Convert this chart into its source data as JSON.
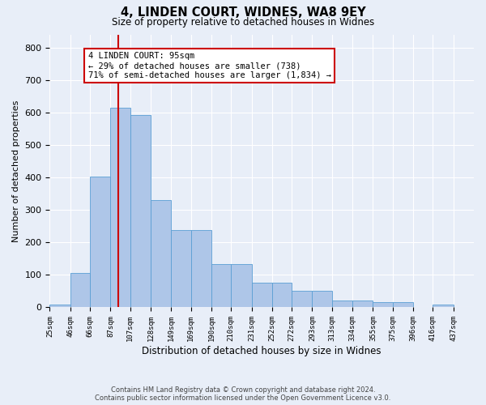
{
  "title1": "4, LINDEN COURT, WIDNES, WA8 9EY",
  "title2": "Size of property relative to detached houses in Widnes",
  "xlabel": "Distribution of detached houses by size in Widnes",
  "ylabel": "Number of detached properties",
  "footer1": "Contains HM Land Registry data © Crown copyright and database right 2024.",
  "footer2": "Contains public sector information licensed under the Open Government Licence v3.0.",
  "annotation_line1": "4 LINDEN COURT: 95sqm",
  "annotation_line2": "← 29% of detached houses are smaller (738)",
  "annotation_line3": "71% of semi-detached houses are larger (1,834) →",
  "bar_left_edges": [
    25,
    46,
    66,
    87,
    107,
    128,
    149,
    169,
    190,
    210,
    231,
    252,
    272,
    293,
    313,
    334,
    355,
    375,
    396,
    416
  ],
  "bar_widths": [
    21,
    20,
    21,
    20,
    21,
    21,
    20,
    21,
    20,
    21,
    21,
    20,
    21,
    20,
    21,
    21,
    20,
    21,
    20,
    21
  ],
  "bar_heights": [
    8,
    106,
    403,
    615,
    591,
    330,
    238,
    238,
    133,
    133,
    77,
    77,
    50,
    50,
    20,
    20,
    15,
    15,
    0,
    8
  ],
  "tick_labels": [
    "25sqm",
    "46sqm",
    "66sqm",
    "87sqm",
    "107sqm",
    "128sqm",
    "149sqm",
    "169sqm",
    "190sqm",
    "210sqm",
    "231sqm",
    "252sqm",
    "272sqm",
    "293sqm",
    "313sqm",
    "334sqm",
    "355sqm",
    "375sqm",
    "396sqm",
    "416sqm",
    "437sqm"
  ],
  "tick_positions": [
    25,
    46,
    66,
    87,
    107,
    128,
    149,
    169,
    190,
    210,
    231,
    252,
    272,
    293,
    313,
    334,
    355,
    375,
    396,
    416,
    437
  ],
  "bar_color": "#aec6e8",
  "bar_edge_color": "#5a9fd4",
  "vline_x": 95,
  "vline_color": "#cc0000",
  "ylim": [
    0,
    840
  ],
  "xlim": [
    25,
    458
  ],
  "yticks": [
    0,
    100,
    200,
    300,
    400,
    500,
    600,
    700,
    800
  ],
  "bg_color": "#e8eef8",
  "grid_color": "#ffffff"
}
